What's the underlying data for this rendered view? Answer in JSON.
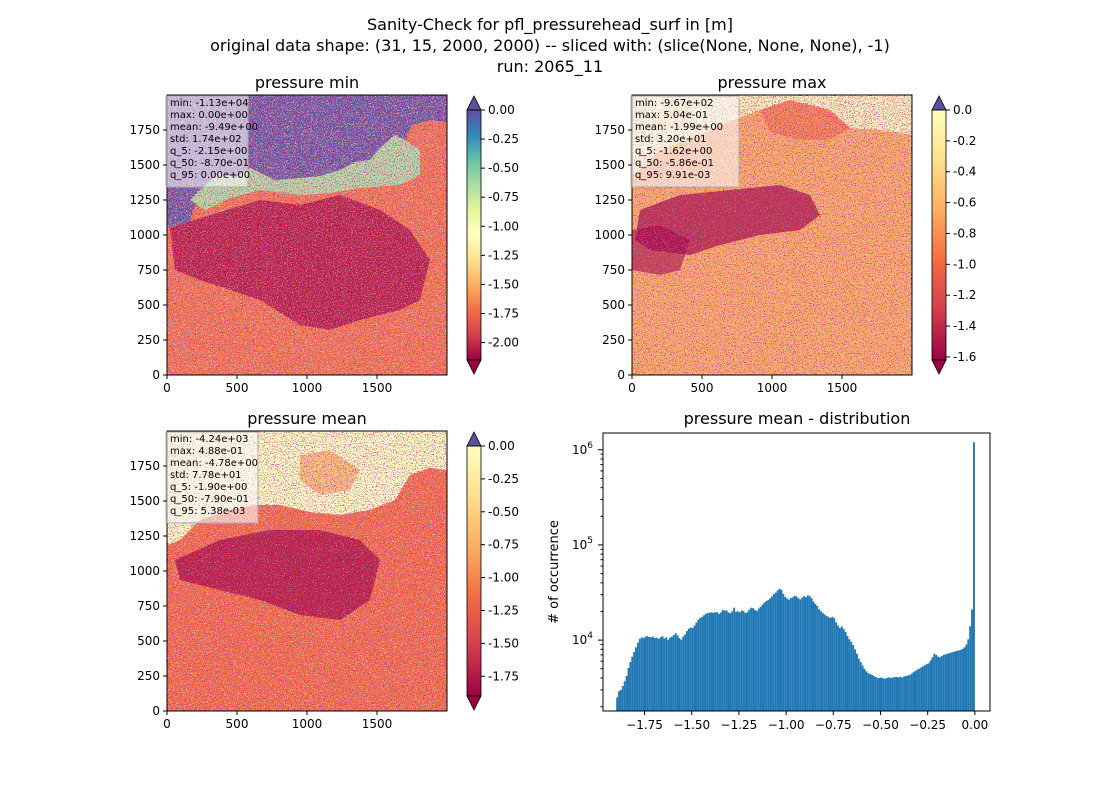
{
  "figure": {
    "title_lines": [
      "Sanity-Check for pfl_pressurehead_surf in [m]",
      "original data shape: (31, 15, 2000, 2000) -- sliced with: (slice(None, None, None), -1)",
      "run: 2065_11"
    ]
  },
  "chart_data": [
    {
      "type": "heatmap",
      "title": "pressure min",
      "colormap": "Spectral",
      "xlim": [
        0,
        2000
      ],
      "ylim": [
        0,
        2000
      ],
      "x_ticks": [
        0,
        500,
        1000,
        1500
      ],
      "y_ticks": [
        0,
        250,
        500,
        750,
        1000,
        1250,
        1500,
        1750
      ],
      "color_range": [
        -2.15,
        0.0
      ],
      "colorbar_ticks": [
        "0.00",
        "-0.25",
        "-0.50",
        "-0.75",
        "-1.00",
        "-1.25",
        "-1.50",
        "-1.75",
        "-2.00"
      ],
      "colorbar_extend": "both",
      "stats": [
        "min: -1.13e+04",
        "max: 0.00e+00",
        "mean: -9.49e+00",
        "std: 1.74e+02",
        "q_5: -2.15e+00",
        "q_50: -8.70e-01",
        "q_95: 0.00e+00"
      ]
    },
    {
      "type": "heatmap",
      "title": "pressure max",
      "colormap": "Spectral",
      "xlim": [
        0,
        2000
      ],
      "ylim": [
        0,
        2000
      ],
      "x_ticks": [
        0,
        500,
        1000,
        1500
      ],
      "y_ticks": [
        0,
        250,
        500,
        750,
        1000,
        1250,
        1500,
        1750
      ],
      "color_range": [
        -1.62,
        0.0
      ],
      "colorbar_ticks": [
        "0.0",
        "-0.2",
        "-0.4",
        "-0.6",
        "-0.8",
        "-1.0",
        "-1.2",
        "-1.4",
        "-1.6"
      ],
      "colorbar_extend": "both",
      "stats": [
        "min: -9.67e+02",
        "max: 5.04e-01",
        "mean: -1.99e+00",
        "std: 3.20e+01",
        "q_5: -1.62e+00",
        "q_50: -5.86e-01",
        "q_95: 9.91e-03"
      ]
    },
    {
      "type": "heatmap",
      "title": "pressure mean",
      "colormap": "Spectral",
      "xlim": [
        0,
        2000
      ],
      "ylim": [
        0,
        2000
      ],
      "x_ticks": [
        0,
        500,
        1000,
        1500
      ],
      "y_ticks": [
        0,
        250,
        500,
        750,
        1000,
        1250,
        1500,
        1750
      ],
      "color_range": [
        -1.9,
        0.0
      ],
      "colorbar_ticks": [
        "0.00",
        "-0.25",
        "-0.50",
        "-0.75",
        "-1.00",
        "-1.25",
        "-1.50",
        "-1.75"
      ],
      "colorbar_extend": "both",
      "stats": [
        "min: -4.24e+03",
        "max: 4.88e-01",
        "mean: -4.78e+00",
        "std: 7.78e+01",
        "q_5: -1.90e+00",
        "q_50: -7.90e-01",
        "q_95: 5.38e-03"
      ]
    },
    {
      "type": "bar",
      "title": "pressure mean - distribution",
      "xlabel": "",
      "ylabel": "# of occurrence",
      "y_scale": "log",
      "xlim": [
        -1.97,
        0.08
      ],
      "ylim": [
        1800,
        1500000
      ],
      "x_ticks": [
        "-1.75",
        "-1.50",
        "-1.25",
        "-1.00",
        "-0.75",
        "-0.50",
        "-0.25",
        "0.00"
      ],
      "y_tick_labels": [
        {
          "base": "10",
          "exp": "4"
        },
        {
          "base": "10",
          "exp": "5"
        },
        {
          "base": "10",
          "exp": "6"
        }
      ],
      "bar_color": "#1f77b4",
      "bin_width": 0.01,
      "bins": [
        [
          -1.9,
          2500
        ],
        [
          -1.89,
          2900
        ],
        [
          -1.88,
          3000
        ],
        [
          -1.87,
          3300
        ],
        [
          -1.86,
          3700
        ],
        [
          -1.85,
          4200
        ],
        [
          -1.84,
          5100
        ],
        [
          -1.83,
          5900
        ],
        [
          -1.82,
          6700
        ],
        [
          -1.81,
          7500
        ],
        [
          -1.8,
          8400
        ],
        [
          -1.79,
          9400
        ],
        [
          -1.78,
          10300
        ],
        [
          -1.77,
          10700
        ],
        [
          -1.76,
          10500
        ],
        [
          -1.75,
          10900
        ],
        [
          -1.74,
          11000
        ],
        [
          -1.73,
          10800
        ],
        [
          -1.72,
          10700
        ],
        [
          -1.71,
          10900
        ],
        [
          -1.7,
          10500
        ],
        [
          -1.69,
          10600
        ],
        [
          -1.68,
          10300
        ],
        [
          -1.67,
          10700
        ],
        [
          -1.66,
          11000
        ],
        [
          -1.65,
          10400
        ],
        [
          -1.64,
          10700
        ],
        [
          -1.63,
          10100
        ],
        [
          -1.62,
          10600
        ],
        [
          -1.61,
          10900
        ],
        [
          -1.6,
          11300
        ],
        [
          -1.59,
          11800
        ],
        [
          -1.58,
          11200
        ],
        [
          -1.57,
          10500
        ],
        [
          -1.56,
          10100
        ],
        [
          -1.55,
          10900
        ],
        [
          -1.54,
          11500
        ],
        [
          -1.53,
          12500
        ],
        [
          -1.52,
          13200
        ],
        [
          -1.51,
          13600
        ],
        [
          -1.5,
          13400
        ],
        [
          -1.49,
          14200
        ],
        [
          -1.48,
          15300
        ],
        [
          -1.47,
          16400
        ],
        [
          -1.46,
          17100
        ],
        [
          -1.45,
          17500
        ],
        [
          -1.44,
          18200
        ],
        [
          -1.43,
          18900
        ],
        [
          -1.42,
          19300
        ],
        [
          -1.41,
          19400
        ],
        [
          -1.4,
          19600
        ],
        [
          -1.39,
          19300
        ],
        [
          -1.38,
          19700
        ],
        [
          -1.37,
          19600
        ],
        [
          -1.36,
          18900
        ],
        [
          -1.35,
          19500
        ],
        [
          -1.34,
          20800
        ],
        [
          -1.33,
          20400
        ],
        [
          -1.32,
          20500
        ],
        [
          -1.31,
          19500
        ],
        [
          -1.3,
          19200
        ],
        [
          -1.29,
          20100
        ],
        [
          -1.28,
          21900
        ],
        [
          -1.27,
          19800
        ],
        [
          -1.26,
          20100
        ],
        [
          -1.25,
          19600
        ],
        [
          -1.24,
          20500
        ],
        [
          -1.23,
          20100
        ],
        [
          -1.22,
          19200
        ],
        [
          -1.21,
          19700
        ],
        [
          -1.2,
          20900
        ],
        [
          -1.19,
          21900
        ],
        [
          -1.18,
          21700
        ],
        [
          -1.17,
          20800
        ],
        [
          -1.16,
          20200
        ],
        [
          -1.15,
          21500
        ],
        [
          -1.14,
          22400
        ],
        [
          -1.13,
          23600
        ],
        [
          -1.12,
          24800
        ],
        [
          -1.11,
          25700
        ],
        [
          -1.1,
          26300
        ],
        [
          -1.09,
          27400
        ],
        [
          -1.08,
          28800
        ],
        [
          -1.07,
          30500
        ],
        [
          -1.06,
          31600
        ],
        [
          -1.05,
          33300
        ],
        [
          -1.04,
          34700
        ],
        [
          -1.03,
          33700
        ],
        [
          -1.02,
          30700
        ],
        [
          -1.01,
          28500
        ],
        [
          -1.0,
          27400
        ],
        [
          -0.99,
          26600
        ],
        [
          -0.98,
          27700
        ],
        [
          -0.97,
          28100
        ],
        [
          -0.96,
          29200
        ],
        [
          -0.95,
          28800
        ],
        [
          -0.94,
          27600
        ],
        [
          -0.93,
          26800
        ],
        [
          -0.92,
          28000
        ],
        [
          -0.91,
          28900
        ],
        [
          -0.9,
          28200
        ],
        [
          -0.89,
          29600
        ],
        [
          -0.88,
          29000
        ],
        [
          -0.87,
          27600
        ],
        [
          -0.86,
          25400
        ],
        [
          -0.85,
          24000
        ],
        [
          -0.84,
          22800
        ],
        [
          -0.83,
          21100
        ],
        [
          -0.82,
          20100
        ],
        [
          -0.81,
          19200
        ],
        [
          -0.8,
          18500
        ],
        [
          -0.79,
          17900
        ],
        [
          -0.78,
          17400
        ],
        [
          -0.77,
          17100
        ],
        [
          -0.76,
          17600
        ],
        [
          -0.75,
          17000
        ],
        [
          -0.74,
          15400
        ],
        [
          -0.73,
          14200
        ],
        [
          -0.72,
          13400
        ],
        [
          -0.71,
          13900
        ],
        [
          -0.7,
          13100
        ],
        [
          -0.69,
          12200
        ],
        [
          -0.68,
          11100
        ],
        [
          -0.67,
          10200
        ],
        [
          -0.66,
          9600
        ],
        [
          -0.65,
          8900
        ],
        [
          -0.64,
          8000
        ],
        [
          -0.63,
          7200
        ],
        [
          -0.62,
          6400
        ],
        [
          -0.61,
          5900
        ],
        [
          -0.6,
          5400
        ],
        [
          -0.59,
          5000
        ],
        [
          -0.58,
          4700
        ],
        [
          -0.57,
          4500
        ],
        [
          -0.56,
          4400
        ],
        [
          -0.55,
          4300
        ],
        [
          -0.54,
          4200
        ],
        [
          -0.53,
          4100
        ],
        [
          -0.52,
          4000
        ],
        [
          -0.51,
          4000
        ],
        [
          -0.5,
          4050
        ],
        [
          -0.49,
          3950
        ],
        [
          -0.48,
          3950
        ],
        [
          -0.47,
          4000
        ],
        [
          -0.46,
          4050
        ],
        [
          -0.45,
          4000
        ],
        [
          -0.44,
          4050
        ],
        [
          -0.43,
          4100
        ],
        [
          -0.42,
          4100
        ],
        [
          -0.41,
          4050
        ],
        [
          -0.4,
          4100
        ],
        [
          -0.39,
          4050
        ],
        [
          -0.38,
          4150
        ],
        [
          -0.37,
          4200
        ],
        [
          -0.36,
          4250
        ],
        [
          -0.35,
          4300
        ],
        [
          -0.34,
          4450
        ],
        [
          -0.33,
          4600
        ],
        [
          -0.32,
          4750
        ],
        [
          -0.31,
          4900
        ],
        [
          -0.3,
          5000
        ],
        [
          -0.29,
          5150
        ],
        [
          -0.28,
          5300
        ],
        [
          -0.27,
          5450
        ],
        [
          -0.26,
          5600
        ],
        [
          -0.25,
          5700
        ],
        [
          -0.24,
          6100
        ],
        [
          -0.23,
          6600
        ],
        [
          -0.22,
          7200
        ],
        [
          -0.21,
          7000
        ],
        [
          -0.2,
          6700
        ],
        [
          -0.19,
          6600
        ],
        [
          -0.18,
          6800
        ],
        [
          -0.17,
          7000
        ],
        [
          -0.16,
          7100
        ],
        [
          -0.15,
          7200
        ],
        [
          -0.14,
          7300
        ],
        [
          -0.13,
          7400
        ],
        [
          -0.12,
          7500
        ],
        [
          -0.11,
          7600
        ],
        [
          -0.1,
          7700
        ],
        [
          -0.09,
          7800
        ],
        [
          -0.08,
          7900
        ],
        [
          -0.07,
          8100
        ],
        [
          -0.06,
          8400
        ],
        [
          -0.05,
          9000
        ],
        [
          -0.04,
          10200
        ],
        [
          -0.03,
          14000
        ],
        [
          -0.02,
          21000
        ],
        [
          -0.01,
          1200000
        ]
      ]
    }
  ]
}
